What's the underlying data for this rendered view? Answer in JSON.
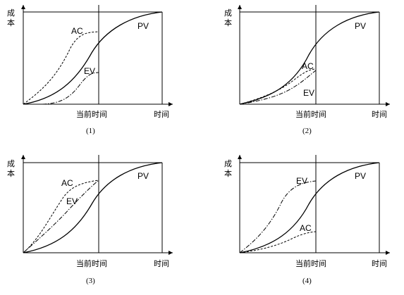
{
  "panels": [
    {
      "id": "1",
      "y_label": "成本",
      "x_current": "当前时间",
      "x_end": "时间",
      "caption": "(1)",
      "curves": {
        "pv": "PV",
        "ac": "AC",
        "ev": "EV"
      }
    },
    {
      "id": "2",
      "y_label": "成本",
      "x_current": "当前时间",
      "x_end": "时间",
      "caption": "(2)",
      "curves": {
        "pv": "PV",
        "ac": "AC",
        "ev": "EV"
      }
    },
    {
      "id": "3",
      "y_label": "成本",
      "x_current": "当前时间",
      "x_end": "时间",
      "caption": "(3)",
      "curves": {
        "pv": "PV",
        "ac": "AC",
        "ev": "EV"
      }
    },
    {
      "id": "4",
      "y_label": "成本",
      "x_current": "当前时间",
      "x_end": "时间",
      "caption": "(4)",
      "curves": {
        "pv": "PV",
        "ac": "AC",
        "ev": "EV"
      }
    }
  ]
}
